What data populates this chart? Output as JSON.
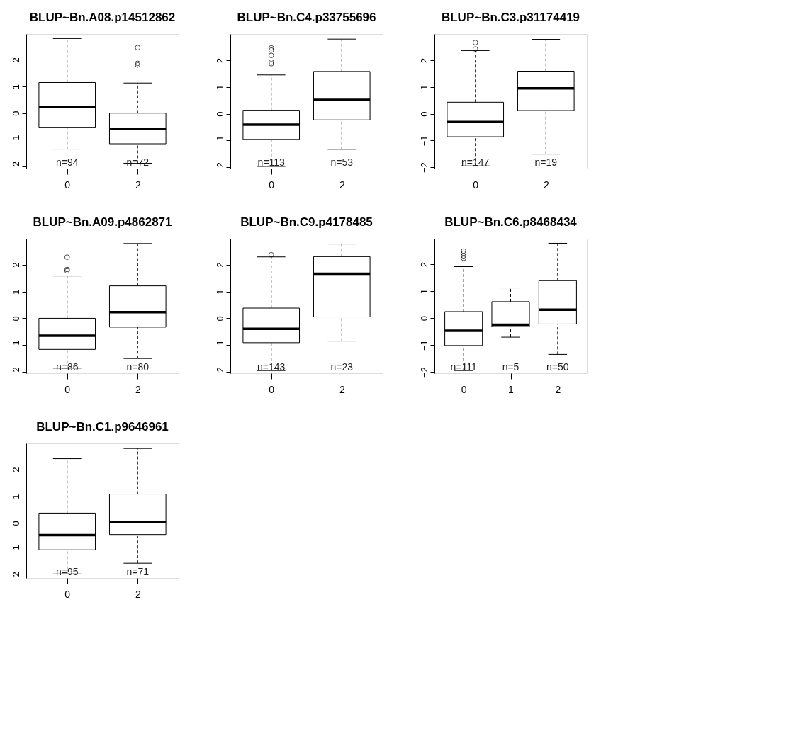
{
  "chart_data": [
    {
      "type": "box",
      "title": "BLUP~Bn.A08.p14512862",
      "categories": [
        "0",
        "2"
      ],
      "ylim": [
        -2.08,
        2.97
      ],
      "yticks": [
        -2,
        -1,
        0,
        1,
        2
      ],
      "grid": false,
      "boxes": [
        {
          "low": -1.35,
          "q1": -0.53,
          "median": 0.23,
          "q3": 1.15,
          "high": 2.8
        },
        {
          "low": -1.88,
          "q1": -1.15,
          "median": -0.6,
          "q3": 0,
          "high": 1.13,
          "outliers": [
            2.46,
            1.87,
            1.81
          ]
        }
      ],
      "annotations": [
        "n=94",
        "n=72"
      ]
    },
    {
      "type": "box",
      "title": "BLUP~Bn.C4.p33755696",
      "categories": [
        "0",
        "2"
      ],
      "ylim": [
        -2.05,
        2.98
      ],
      "yticks": [
        -2,
        -1,
        0,
        1,
        2
      ],
      "grid": false,
      "boxes": [
        {
          "low": -1.97,
          "q1": -0.96,
          "median": -0.41,
          "q3": 0.13,
          "high": 1.45,
          "outliers": [
            2.46,
            2.38,
            2.18,
            1.93,
            1.87
          ]
        },
        {
          "low": -1.33,
          "q1": -0.23,
          "median": 0.52,
          "q3": 1.58,
          "high": 2.79
        }
      ],
      "annotations": [
        "n=113",
        "n=53"
      ]
    },
    {
      "type": "box",
      "title": "BLUP~Bn.C3.p31174419",
      "categories": [
        "0",
        "2"
      ],
      "ylim": [
        -2.05,
        2.98
      ],
      "yticks": [
        -2,
        -1,
        0,
        1,
        2
      ],
      "grid": false,
      "boxes": [
        {
          "low": -1.95,
          "q1": -0.86,
          "median": -0.31,
          "q3": 0.43,
          "high": 2.36,
          "outliers": [
            2.66,
            2.42
          ]
        },
        {
          "low": -1.51,
          "q1": 0.12,
          "median": 0.95,
          "q3": 1.59,
          "high": 2.78
        }
      ],
      "annotations": [
        "n=147",
        "n=19"
      ]
    },
    {
      "type": "box",
      "title": "BLUP~Bn.A09.p4862871",
      "categories": [
        "0",
        "2"
      ],
      "ylim": [
        -2.05,
        2.97
      ],
      "yticks": [
        -2,
        -1,
        0,
        1,
        2
      ],
      "grid": false,
      "boxes": [
        {
          "low": -1.86,
          "q1": -1.16,
          "median": -0.65,
          "q3": 0,
          "high": 1.58,
          "outliers": [
            2.28,
            1.82,
            1.77
          ]
        },
        {
          "low": -1.5,
          "q1": -0.33,
          "median": 0.23,
          "q3": 1.21,
          "high": 2.79
        }
      ],
      "annotations": [
        "n=86",
        "n=80"
      ]
    },
    {
      "type": "box",
      "title": "BLUP~Bn.C9.p4178485",
      "categories": [
        "0",
        "2"
      ],
      "ylim": [
        -2.05,
        2.97
      ],
      "yticks": [
        -2,
        -1,
        0,
        1,
        2
      ],
      "grid": false,
      "boxes": [
        {
          "low": -1.95,
          "q1": -0.91,
          "median": -0.39,
          "q3": 0.38,
          "high": 2.29,
          "outliers": [
            2.37
          ]
        },
        {
          "low": -0.85,
          "q1": 0.05,
          "median": 1.66,
          "q3": 2.3,
          "high": 2.77
        }
      ],
      "annotations": [
        "n=143",
        "n=23"
      ]
    },
    {
      "type": "box",
      "title": "BLUP~Bn.C6.p8468434",
      "categories": [
        "0",
        "1",
        "2"
      ],
      "ylim": [
        -2.05,
        2.95
      ],
      "yticks": [
        -2,
        -1,
        0,
        1,
        2
      ],
      "grid": false,
      "boxes": [
        {
          "low": -1.95,
          "q1": -1.02,
          "median": -0.47,
          "q3": 0.24,
          "high": 1.91,
          "outliers": [
            2.49,
            2.41,
            2.31,
            2.22
          ]
        },
        {
          "low": -0.71,
          "q1": -0.32,
          "median": -0.25,
          "q3": 0.61,
          "high": 1.12
        },
        {
          "low": -1.35,
          "q1": -0.22,
          "median": 0.31,
          "q3": 1.39,
          "high": 2.78
        }
      ],
      "annotations": [
        "n=111",
        "n=5",
        "n=50"
      ]
    },
    {
      "type": "box",
      "title": "BLUP~Bn.C1.p9646961",
      "categories": [
        "0",
        "2"
      ],
      "ylim": [
        -2.05,
        2.97
      ],
      "yticks": [
        -2,
        -1,
        0,
        1,
        2
      ],
      "grid": false,
      "boxes": [
        {
          "low": -1.9,
          "q1": -1.0,
          "median": -0.45,
          "q3": 0.37,
          "high": 2.4
        },
        {
          "low": -1.5,
          "q1": -0.43,
          "median": 0.03,
          "q3": 1.08,
          "high": 2.78
        }
      ],
      "annotations": [
        "n=95",
        "n=71"
      ]
    }
  ]
}
